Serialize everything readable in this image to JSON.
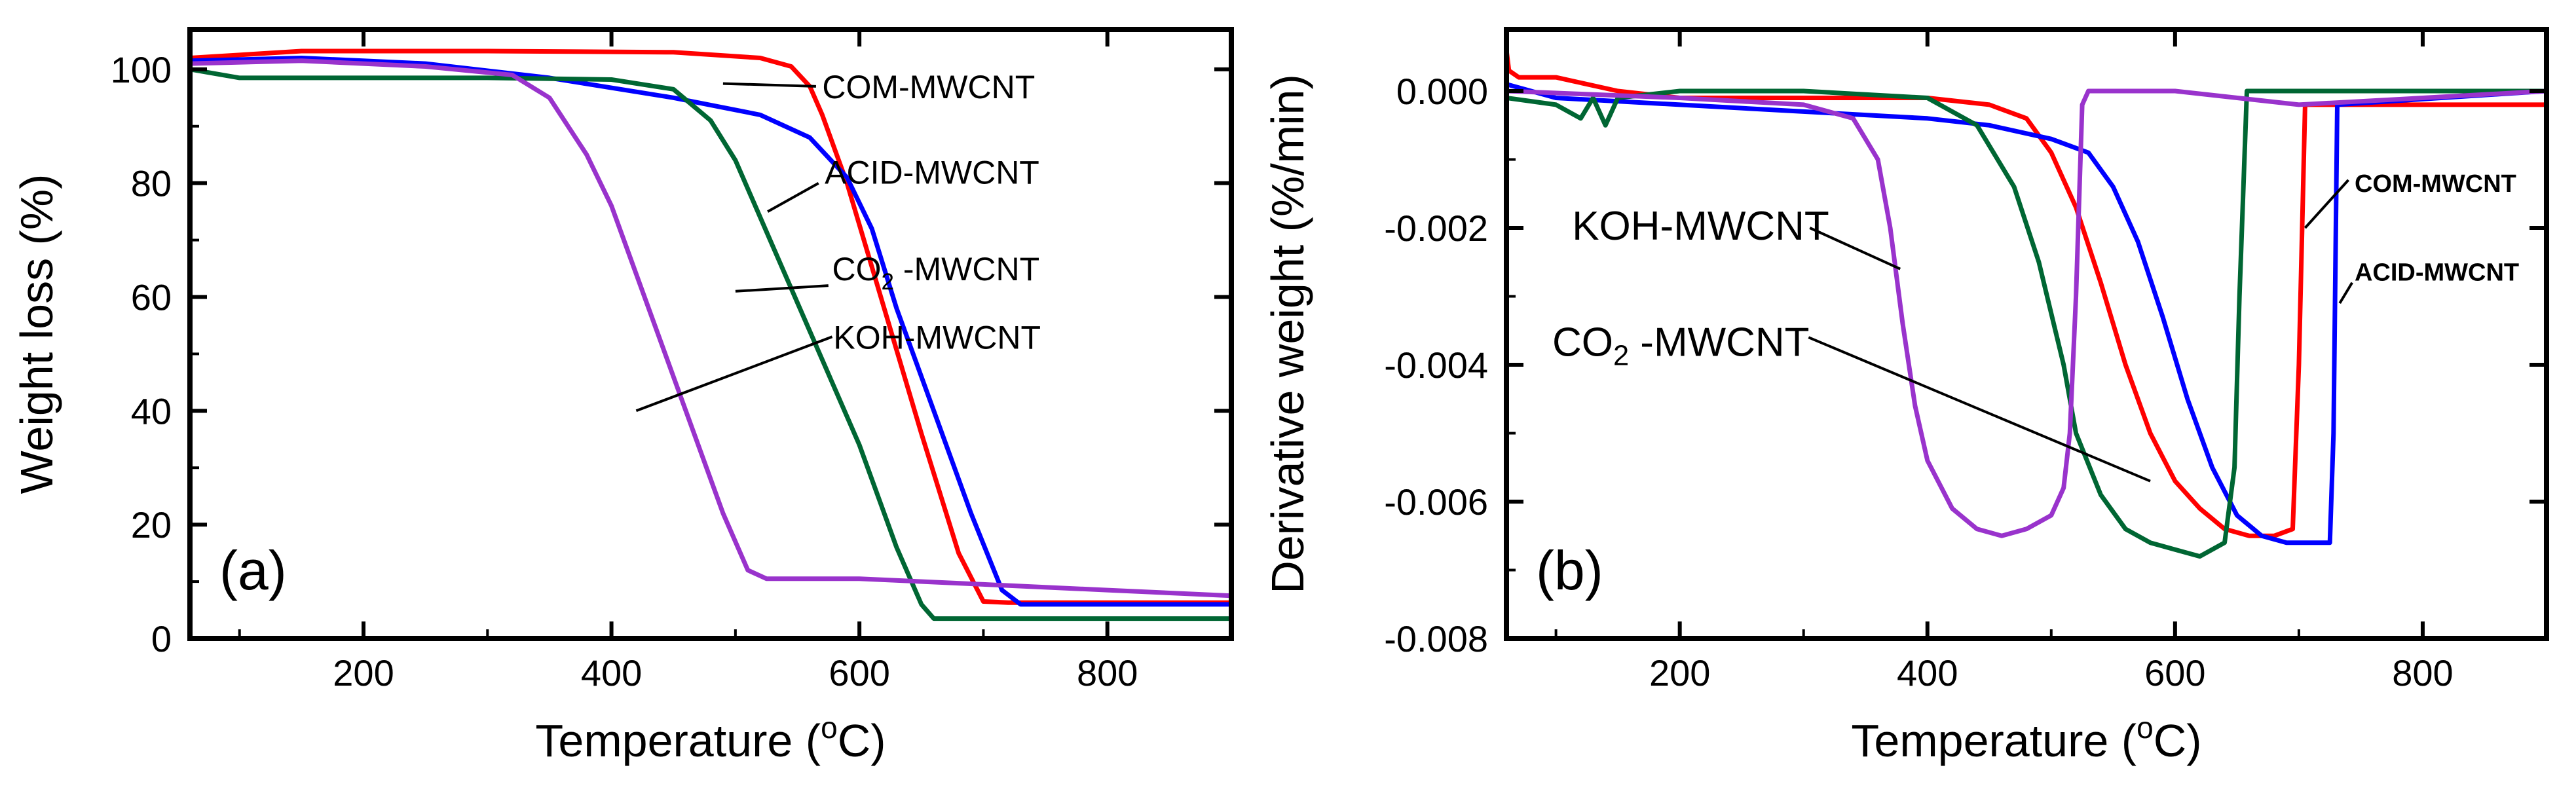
{
  "colors": {
    "COM-MWCNT": "#ff0000",
    "ACID-MWCNT": "#0000ff",
    "CO2-MWCNT": "#006633",
    "KOH-MWCNT": "#9933cc"
  },
  "chart_data": [
    {
      "type": "line",
      "panel_label": "(a)",
      "xlabel": "Temperature (oC)",
      "xlabel_parts": {
        "main": "Temperature (",
        "sup": "o",
        "tail": "C)"
      },
      "ylabel": "Weight loss (%)",
      "xlim": [
        60,
        900
      ],
      "ylim": [
        0,
        107
      ],
      "xticks": [
        200,
        400,
        600,
        800
      ],
      "xminor": [
        100,
        300,
        500,
        700,
        900
      ],
      "yticks": [
        0,
        20,
        40,
        60,
        80,
        100
      ],
      "yminor": [
        10,
        30,
        50,
        70,
        90
      ],
      "series": [
        {
          "name": "COM-MWCNT",
          "x": [
            60,
            150,
            300,
            450,
            520,
            545,
            560,
            570,
            590,
            620,
            650,
            680,
            700,
            720,
            900
          ],
          "y": [
            102,
            103.2,
            103.2,
            103,
            102,
            100.5,
            97,
            92,
            80,
            58,
            36,
            15,
            6.5,
            6.3,
            6.3
          ]
        },
        {
          "name": "ACID-MWCNT",
          "x": [
            60,
            150,
            250,
            350,
            450,
            520,
            560,
            590,
            610,
            630,
            660,
            690,
            715,
            730,
            900
          ],
          "y": [
            101.5,
            102,
            101,
            98.5,
            95,
            92,
            88,
            81,
            72,
            58,
            40,
            22,
            8.5,
            6,
            6
          ]
        },
        {
          "name": "CO2-MWCNT",
          "x": [
            60,
            100,
            200,
            300,
            400,
            450,
            480,
            500,
            530,
            560,
            600,
            630,
            650,
            660,
            900
          ],
          "y": [
            100,
            98.5,
            98.5,
            98.5,
            98.2,
            96.5,
            91,
            84,
            69,
            54,
            34,
            16,
            6,
            3.5,
            3.5
          ]
        },
        {
          "name": "KOH-MWCNT",
          "x": [
            60,
            150,
            250,
            320,
            350,
            380,
            400,
            430,
            460,
            490,
            510,
            525,
            540,
            600,
            700,
            800,
            900
          ],
          "y": [
            101,
            101.5,
            100.5,
            99,
            95,
            85,
            76,
            58,
            40,
            22,
            12,
            10.5,
            10.5,
            10.5,
            9.5,
            8.5,
            7.5
          ]
        }
      ],
      "annotations": [
        {
          "text": "COM-MWCNT",
          "for": "COM-MWCNT",
          "at": [
            570,
            97
          ],
          "line": [
            [
              565,
              97
            ],
            [
              490,
              97.5
            ]
          ]
        },
        {
          "text": "ACID-MWCNT",
          "for": "ACID-MWCNT",
          "at": [
            572,
            82
          ],
          "line": [
            [
              567,
              80
            ],
            [
              526,
              75
            ]
          ]
        },
        {
          "text": "CO2-MWCNT",
          "parts": {
            "main": "CO",
            "sub": "2",
            "tail": " -MWCNT"
          },
          "for": "CO2-MWCNT",
          "at": [
            578,
            65
          ],
          "line": [
            [
              575,
              62
            ],
            [
              500,
              61
            ]
          ]
        },
        {
          "text": "KOH-MWCNT",
          "for": "KOH-MWCNT",
          "at": [
            579,
            53
          ],
          "line": [
            [
              578,
              53
            ],
            [
              420,
              40
            ]
          ]
        }
      ]
    },
    {
      "type": "line",
      "panel_label": "(b)",
      "xlabel": "Temperature (oC)",
      "xlabel_parts": {
        "main": "Temperature (",
        "sup": "o",
        "tail": "C)"
      },
      "ylabel": "Derivative weight (%/min)",
      "xlim": [
        60,
        900
      ],
      "ylim": [
        -0.008,
        0.0009
      ],
      "xticks": [
        200,
        400,
        600,
        800
      ],
      "xminor": [
        100,
        300,
        500,
        700,
        900
      ],
      "yticks": [
        0,
        -0.002,
        -0.004,
        -0.006,
        -0.008
      ],
      "ytick_labels": [
        "0.000",
        "-0.002",
        "-0.004",
        "-0.006",
        "-0.008"
      ],
      "yminor": [
        -0.001,
        -0.003,
        -0.005,
        -0.007
      ],
      "series": [
        {
          "name": "COM-MWCNT",
          "x": [
            60,
            62,
            70,
            100,
            150,
            200,
            300,
            400,
            450,
            480,
            500,
            520,
            540,
            560,
            580,
            600,
            620,
            640,
            660,
            680,
            695,
            700,
            705,
            900
          ],
          "y": [
            0.0006,
            0.0003,
            0.0002,
            0.0002,
            0.0,
            -0.0001,
            -0.0001,
            -0.0001,
            -0.0002,
            -0.0004,
            -0.0009,
            -0.0017,
            -0.0028,
            -0.004,
            -0.005,
            -0.0057,
            -0.0061,
            -0.0064,
            -0.0065,
            -0.0065,
            -0.0064,
            -0.004,
            -0.0002,
            -0.0002
          ]
        },
        {
          "name": "ACID-MWCNT",
          "x": [
            60,
            100,
            200,
            300,
            400,
            450,
            500,
            530,
            550,
            570,
            590,
            610,
            630,
            650,
            670,
            690,
            710,
            725,
            728,
            731,
            900
          ],
          "y": [
            0.0001,
            -0.0001,
            -0.0002,
            -0.0003,
            -0.0004,
            -0.0005,
            -0.0007,
            -0.0009,
            -0.0014,
            -0.0022,
            -0.0033,
            -0.0045,
            -0.0055,
            -0.0062,
            -0.0065,
            -0.0066,
            -0.0066,
            -0.0066,
            -0.005,
            -0.0002,
            0.0
          ]
        },
        {
          "name": "CO2-MWCNT",
          "x": [
            60,
            100,
            120,
            130,
            140,
            150,
            200,
            300,
            400,
            440,
            470,
            490,
            510,
            520,
            540,
            560,
            580,
            600,
            620,
            640,
            648,
            652,
            658,
            700,
            900
          ],
          "y": [
            -0.0001,
            -0.0002,
            -0.0004,
            -0.0001,
            -0.0005,
            -0.0001,
            0.0,
            0.0,
            -0.0001,
            -0.0005,
            -0.0014,
            -0.0025,
            -0.004,
            -0.005,
            -0.0059,
            -0.0064,
            -0.0066,
            -0.0067,
            -0.0068,
            -0.0066,
            -0.0055,
            -0.003,
            0.0,
            0.0,
            0.0
          ]
        },
        {
          "name": "KOH-MWCNT",
          "x": [
            60,
            200,
            300,
            340,
            360,
            370,
            380,
            390,
            400,
            420,
            440,
            460,
            480,
            500,
            510,
            515,
            520,
            525,
            530,
            600,
            700,
            800,
            900
          ],
          "y": [
            0.0,
            -0.0001,
            -0.0002,
            -0.0004,
            -0.001,
            -0.002,
            -0.0034,
            -0.0046,
            -0.0054,
            -0.0061,
            -0.0064,
            -0.0065,
            -0.0064,
            -0.0062,
            -0.0058,
            -0.005,
            -0.003,
            -0.0002,
            0.0,
            0.0,
            -0.0002,
            -0.0001,
            0.0
          ]
        }
      ],
      "annotations": [
        {
          "text": "KOH-MWCNT",
          "for": "KOH-MWCNT",
          "at": [
            113,
            -0.002
          ],
          "line": [
            [
              305,
              -0.002
            ],
            [
              378,
              -0.0026
            ]
          ]
        },
        {
          "text": "CO2-MWCNT",
          "parts": {
            "main": "CO",
            "sub": "2",
            "tail": " -MWCNT"
          },
          "for": "CO2-MWCNT",
          "at": [
            97,
            -0.0037
          ],
          "line": [
            [
              304,
              -0.0036
            ],
            [
              580,
              -0.0057
            ]
          ]
        },
        {
          "text": "COM-MWCNT",
          "for": "COM-MWCNT",
          "at": [
            745,
            -0.0013
          ],
          "line": [
            [
              740,
              -0.0013
            ],
            [
              705,
              -0.002
            ]
          ]
        },
        {
          "text": "ACID-MWCNT",
          "for": "ACID-MWCNT",
          "at": [
            745,
            -0.0026
          ],
          "line": [
            [
              743,
              -0.0028
            ],
            [
              733,
              -0.0031
            ]
          ]
        }
      ]
    }
  ]
}
